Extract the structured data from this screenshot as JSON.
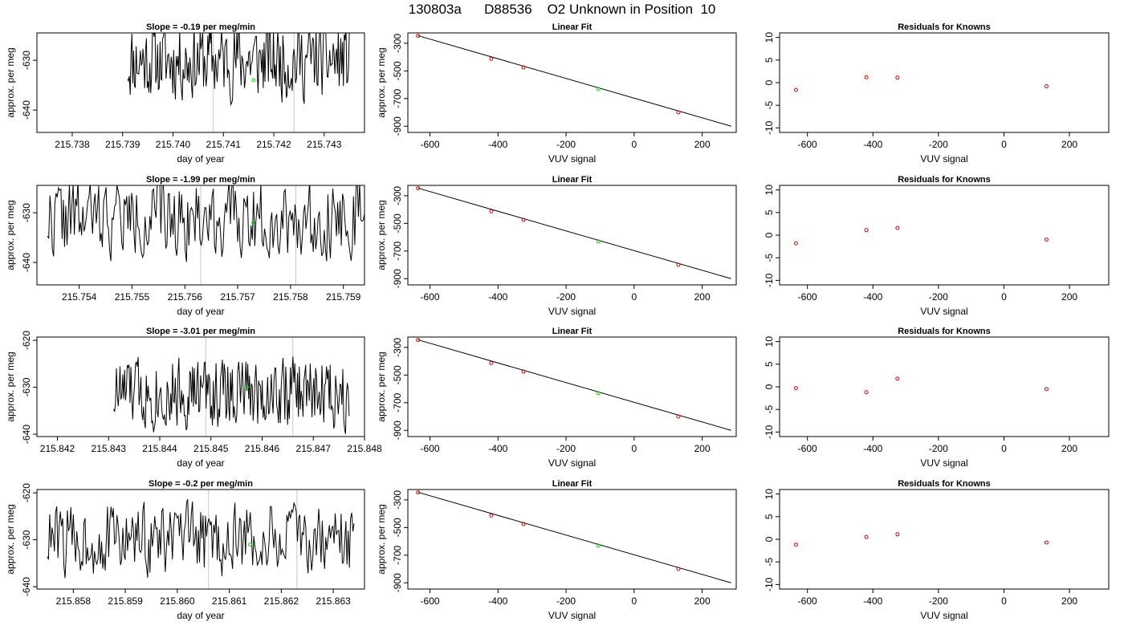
{
  "figure": {
    "title": "130803a      D88536    O2 Unknown in Position  10"
  },
  "colors": {
    "line": "#000000",
    "known_point": "#cc0000",
    "unknown_point": "#00dd00",
    "marker_line": "#c8c8c8"
  },
  "chart_data": [
    {
      "type": "line",
      "panel": "time-series",
      "row": 1,
      "title": "Slope =  -0.19  per meg/min",
      "xlabel": "day of year",
      "ylabel": "approx. per meg",
      "xlim": [
        215.7373,
        215.7438
      ],
      "ylim": [
        -644.5,
        -624.5
      ],
      "xticks": [
        "215.738",
        "215.739",
        "215.740",
        "215.741",
        "215.742",
        "215.743"
      ],
      "yticks": [
        "-630",
        "-640"
      ],
      "vlines": [
        215.7408,
        215.7424
      ],
      "seed": 11,
      "trace_start": 215.7391,
      "trace_end": 215.7435,
      "trace_center": -630,
      "trace_amp": 6,
      "unknown_point": {
        "x": 215.7416,
        "y": -634
      }
    },
    {
      "type": "scatter",
      "panel": "linear-fit",
      "row": 1,
      "title": "Linear Fit",
      "xlabel": "VUV signal",
      "ylabel": "approx. per meg",
      "xlim": [
        -665,
        300
      ],
      "ylim": [
        -945,
        -225
      ],
      "xticks": [
        "-600",
        "-400",
        "-200",
        "0",
        "200"
      ],
      "yticks": [
        "-900",
        "-700",
        "-500",
        "-300"
      ],
      "fit_line": {
        "x": [
          -635,
          285
        ],
        "y": [
          -245,
          -900
        ]
      },
      "knowns": [
        {
          "x": -635,
          "y": -246
        },
        {
          "x": -420,
          "y": -413
        },
        {
          "x": -325,
          "y": -475
        },
        {
          "x": 130,
          "y": -800
        }
      ],
      "unknown": {
        "x": -105,
        "y": -631
      }
    },
    {
      "type": "scatter",
      "panel": "residuals",
      "row": 1,
      "title": "Residuals for Knowns",
      "xlabel": "VUV signal",
      "ylabel": "",
      "xlim": [
        -685,
        320
      ],
      "ylim": [
        -11,
        11
      ],
      "xticks": [
        "-600",
        "-400",
        "-200",
        "0",
        "200"
      ],
      "yticks": [
        "10",
        "5",
        "0",
        "-5",
        "-10"
      ],
      "points": [
        {
          "x": -635,
          "y": -1.6
        },
        {
          "x": -420,
          "y": 1.2
        },
        {
          "x": -325,
          "y": 1.1
        },
        {
          "x": 130,
          "y": -0.8
        }
      ]
    },
    {
      "type": "line",
      "panel": "time-series",
      "row": 2,
      "title": "Slope =  -1.99  per meg/min",
      "xlabel": "day of year",
      "ylabel": "approx. per meg",
      "xlim": [
        215.7532,
        215.7594
      ],
      "ylim": [
        -644.5,
        -624.5
      ],
      "xticks": [
        "215.754",
        "215.755",
        "215.756",
        "215.757",
        "215.758",
        "215.759"
      ],
      "yticks": [
        "-630",
        "-640"
      ],
      "vlines": [
        215.7563,
        215.7581
      ],
      "seed": 22,
      "trace_start": 215.7534,
      "trace_end": 215.7594,
      "trace_center": -631,
      "trace_amp": 6,
      "unknown_point": {
        "x": 215.7573,
        "y": -632
      }
    },
    {
      "type": "scatter",
      "panel": "linear-fit",
      "row": 2,
      "title": "Linear Fit",
      "xlabel": "VUV signal",
      "ylabel": "approx. per meg",
      "xlim": [
        -665,
        300
      ],
      "ylim": [
        -945,
        -225
      ],
      "xticks": [
        "-600",
        "-400",
        "-200",
        "0",
        "200"
      ],
      "yticks": [
        "-900",
        "-700",
        "-500",
        "-300"
      ],
      "fit_line": {
        "x": [
          -635,
          285
        ],
        "y": [
          -245,
          -900
        ]
      },
      "knowns": [
        {
          "x": -635,
          "y": -246
        },
        {
          "x": -420,
          "y": -413
        },
        {
          "x": -325,
          "y": -475
        },
        {
          "x": 130,
          "y": -800
        }
      ],
      "unknown": {
        "x": -105,
        "y": -631
      }
    },
    {
      "type": "scatter",
      "panel": "residuals",
      "row": 2,
      "title": "Residuals for Knowns",
      "xlabel": "VUV signal",
      "ylabel": "",
      "xlim": [
        -685,
        320
      ],
      "ylim": [
        -11,
        11
      ],
      "xticks": [
        "-600",
        "-400",
        "-200",
        "0",
        "200"
      ],
      "yticks": [
        "10",
        "5",
        "0",
        "-5",
        "-10"
      ],
      "points": [
        {
          "x": -635,
          "y": -1.8
        },
        {
          "x": -420,
          "y": 1.1
        },
        {
          "x": -325,
          "y": 1.6
        },
        {
          "x": 130,
          "y": -1.0
        }
      ]
    },
    {
      "type": "line",
      "panel": "time-series",
      "row": 3,
      "title": "Slope =  -3.01  per meg/min",
      "xlabel": "day of year",
      "ylabel": "approx. per meg",
      "xlim": [
        215.8416,
        215.848
      ],
      "ylim": [
        -640.5,
        -619.3
      ],
      "xticks": [
        "215.842",
        "215.843",
        "215.844",
        "215.845",
        "215.846",
        "215.847",
        "215.848"
      ],
      "yticks": [
        "-620",
        "-630",
        "-640"
      ],
      "vlines": [
        215.8449,
        215.8466
      ],
      "seed": 33,
      "trace_start": 215.8431,
      "trace_end": 215.8477,
      "trace_center": -631,
      "trace_amp": 6,
      "unknown_point": {
        "x": 215.8457,
        "y": -630
      }
    },
    {
      "type": "scatter",
      "panel": "linear-fit",
      "row": 3,
      "title": "Linear Fit",
      "xlabel": "VUV signal",
      "ylabel": "approx. per meg",
      "xlim": [
        -665,
        300
      ],
      "ylim": [
        -945,
        -225
      ],
      "xticks": [
        "-600",
        "-400",
        "-200",
        "0",
        "200"
      ],
      "yticks": [
        "-900",
        "-700",
        "-500",
        "-300"
      ],
      "fit_line": {
        "x": [
          -635,
          285
        ],
        "y": [
          -245,
          -900
        ]
      },
      "knowns": [
        {
          "x": -635,
          "y": -246
        },
        {
          "x": -420,
          "y": -413
        },
        {
          "x": -325,
          "y": -475
        },
        {
          "x": 130,
          "y": -800
        }
      ],
      "unknown": {
        "x": -105,
        "y": -631
      }
    },
    {
      "type": "scatter",
      "panel": "residuals",
      "row": 3,
      "title": "Residuals for Knowns",
      "xlabel": "VUV signal",
      "ylabel": "",
      "xlim": [
        -685,
        320
      ],
      "ylim": [
        -11,
        11
      ],
      "xticks": [
        "-600",
        "-400",
        "-200",
        "0",
        "200"
      ],
      "yticks": [
        "10",
        "5",
        "0",
        "-5",
        "-10"
      ],
      "points": [
        {
          "x": -635,
          "y": -0.3
        },
        {
          "x": -420,
          "y": -1.2
        },
        {
          "x": -325,
          "y": 1.8
        },
        {
          "x": 130,
          "y": -0.5
        }
      ]
    },
    {
      "type": "line",
      "panel": "time-series",
      "row": 4,
      "title": "Slope =  -0.2  per meg/min",
      "xlabel": "day of year",
      "ylabel": "approx. per meg",
      "xlim": [
        215.8573,
        215.8636
      ],
      "ylim": [
        -640.5,
        -619.3
      ],
      "xticks": [
        "215.858",
        "215.859",
        "215.860",
        "215.861",
        "215.862",
        "215.863"
      ],
      "yticks": [
        "-620",
        "-630",
        "-640"
      ],
      "vlines": [
        215.8606,
        215.8623
      ],
      "seed": 44,
      "trace_start": 215.8575,
      "trace_end": 215.8634,
      "trace_center": -630,
      "trace_amp": 6,
      "unknown_point": {
        "x": 215.8614,
        "y": -631
      }
    },
    {
      "type": "scatter",
      "panel": "linear-fit",
      "row": 4,
      "title": "Linear Fit",
      "xlabel": "VUV signal",
      "ylabel": "approx. per meg",
      "xlim": [
        -665,
        300
      ],
      "ylim": [
        -945,
        -225
      ],
      "xticks": [
        "-600",
        "-400",
        "-200",
        "0",
        "200"
      ],
      "yticks": [
        "-900",
        "-700",
        "-500",
        "-300"
      ],
      "fit_line": {
        "x": [
          -635,
          285
        ],
        "y": [
          -245,
          -900
        ]
      },
      "knowns": [
        {
          "x": -635,
          "y": -246
        },
        {
          "x": -420,
          "y": -413
        },
        {
          "x": -325,
          "y": -475
        },
        {
          "x": 130,
          "y": -800
        }
      ],
      "unknown": {
        "x": -105,
        "y": -631
      }
    },
    {
      "type": "scatter",
      "panel": "residuals",
      "row": 4,
      "title": "Residuals for Knowns",
      "xlabel": "VUV signal",
      "ylabel": "",
      "xlim": [
        -685,
        320
      ],
      "ylim": [
        -11,
        11
      ],
      "xticks": [
        "-600",
        "-400",
        "-200",
        "0",
        "200"
      ],
      "yticks": [
        "10",
        "5",
        "0",
        "-5",
        "-10"
      ],
      "points": [
        {
          "x": -635,
          "y": -1.2
        },
        {
          "x": -420,
          "y": 0.5
        },
        {
          "x": -325,
          "y": 1.1
        },
        {
          "x": 130,
          "y": -0.7
        }
      ]
    }
  ]
}
